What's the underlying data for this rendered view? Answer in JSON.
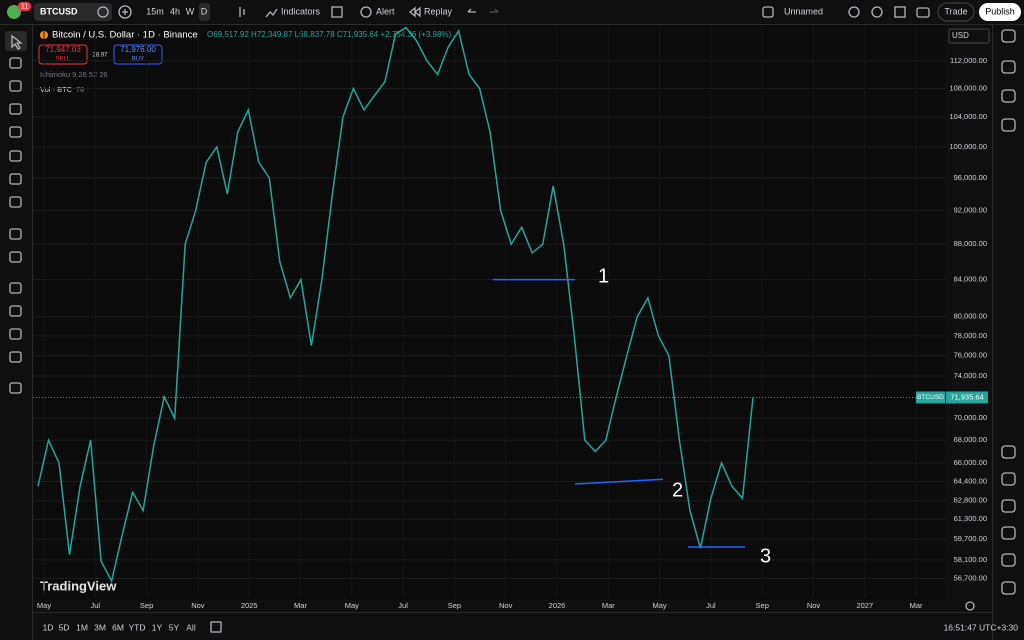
{
  "toolbar": {
    "badge": "11",
    "symbol": "BTCUSD",
    "intervals": [
      "15m",
      "4h",
      "W",
      "D"
    ],
    "indicators": "Indicators",
    "alert": "Alert",
    "replay": "Replay",
    "layout_name": "Unnamed",
    "trade": "Trade",
    "publish": "Publish"
  },
  "legend": {
    "title": "Bitcoin / U.S. Dollar · 1D · Binance",
    "ohlc": "O69,517.92 H72,349.87 L68,837.78 C71,935.64 +2,754.36 (+3.98%)",
    "sell_price": "71,947.03",
    "sell": "SELL",
    "spread": "28.97",
    "buy_price": "71,976.00",
    "buy": "BUY",
    "ichimoku": "Ichimoku 9 26 52 26",
    "vol": "Vol · BTC",
    "vol_value": "76"
  },
  "currency": "USD",
  "chart_data": {
    "type": "line",
    "log_scale": true,
    "color": "#26a69a",
    "ylim": [
      55260,
      117400
    ],
    "yticks": [
      {
        "value": 112000,
        "label": "112,000.00"
      },
      {
        "value": 108000,
        "label": "108,000.00"
      },
      {
        "value": 104000,
        "label": "104,000.00"
      },
      {
        "value": 100000,
        "label": "100,000.00"
      },
      {
        "value": 96000,
        "label": "96,000.00"
      },
      {
        "value": 92000,
        "label": "92,000.00"
      },
      {
        "value": 88000,
        "label": "88,000.00"
      },
      {
        "value": 84000,
        "label": "84,000.00"
      },
      {
        "value": 80000,
        "label": "80,000.00"
      },
      {
        "value": 78000,
        "label": "78,000.00"
      },
      {
        "value": 76000,
        "label": "76,000.00"
      },
      {
        "value": 74000,
        "label": "74,000.00"
      },
      {
        "value": 70000,
        "label": "70,000.00"
      },
      {
        "value": 68000,
        "label": "68,000.00"
      },
      {
        "value": 66000,
        "label": "66,000.00"
      },
      {
        "value": 64400,
        "label": "64,400.00"
      },
      {
        "value": 62800,
        "label": "62,800.00"
      },
      {
        "value": 61300,
        "label": "61,300.00"
      },
      {
        "value": 59700,
        "label": "59,700.00"
      },
      {
        "value": 58100,
        "label": "58,100.00"
      },
      {
        "value": 56700,
        "label": "56,700.00"
      }
    ],
    "x_labels": [
      "May",
      "Jul",
      "Sep",
      "Nov",
      "2025",
      "Mar",
      "May",
      "Jul",
      "Sep",
      "Nov",
      "2026",
      "Mar",
      "May",
      "Jul",
      "Sep",
      "Nov",
      "2027",
      "Mar"
    ],
    "values": [
      64000,
      68000,
      66000,
      58500,
      64000,
      68000,
      58000,
      56500,
      60000,
      63500,
      62000,
      67500,
      72000,
      70000,
      88000,
      92000,
      98000,
      100000,
      94000,
      102000,
      105000,
      98000,
      96000,
      86000,
      82000,
      84000,
      77000,
      84000,
      94000,
      104000,
      108000,
      105000,
      107000,
      109000,
      116000,
      117000,
      115000,
      112000,
      110000,
      114000,
      116500,
      110000,
      108000,
      102000,
      92000,
      88000,
      90000,
      87000,
      88000,
      95000,
      88000,
      78000,
      68000,
      67000,
      68000,
      72000,
      76000,
      80000,
      82000,
      78000,
      76000,
      68000,
      62000,
      59000,
      63000,
      66000,
      64000,
      63000,
      71935.64
    ],
    "last_price": {
      "value": 71935.64,
      "label": "71,935.64"
    },
    "symbol_label": "BTCUSD",
    "drawings": [
      {
        "label": "1",
        "values": [
          84000,
          84000
        ]
      },
      {
        "label": "2",
        "values": [
          64200,
          64600
        ]
      },
      {
        "label": "3",
        "values": [
          59090,
          59090
        ]
      }
    ],
    "watermark": "TradingView"
  },
  "bottom_bar": {
    "ranges": [
      "1D",
      "5D",
      "1M",
      "3M",
      "6M",
      "YTD",
      "1Y",
      "5Y",
      "All"
    ],
    "clock": "16:51:47 UTC+3:30"
  }
}
